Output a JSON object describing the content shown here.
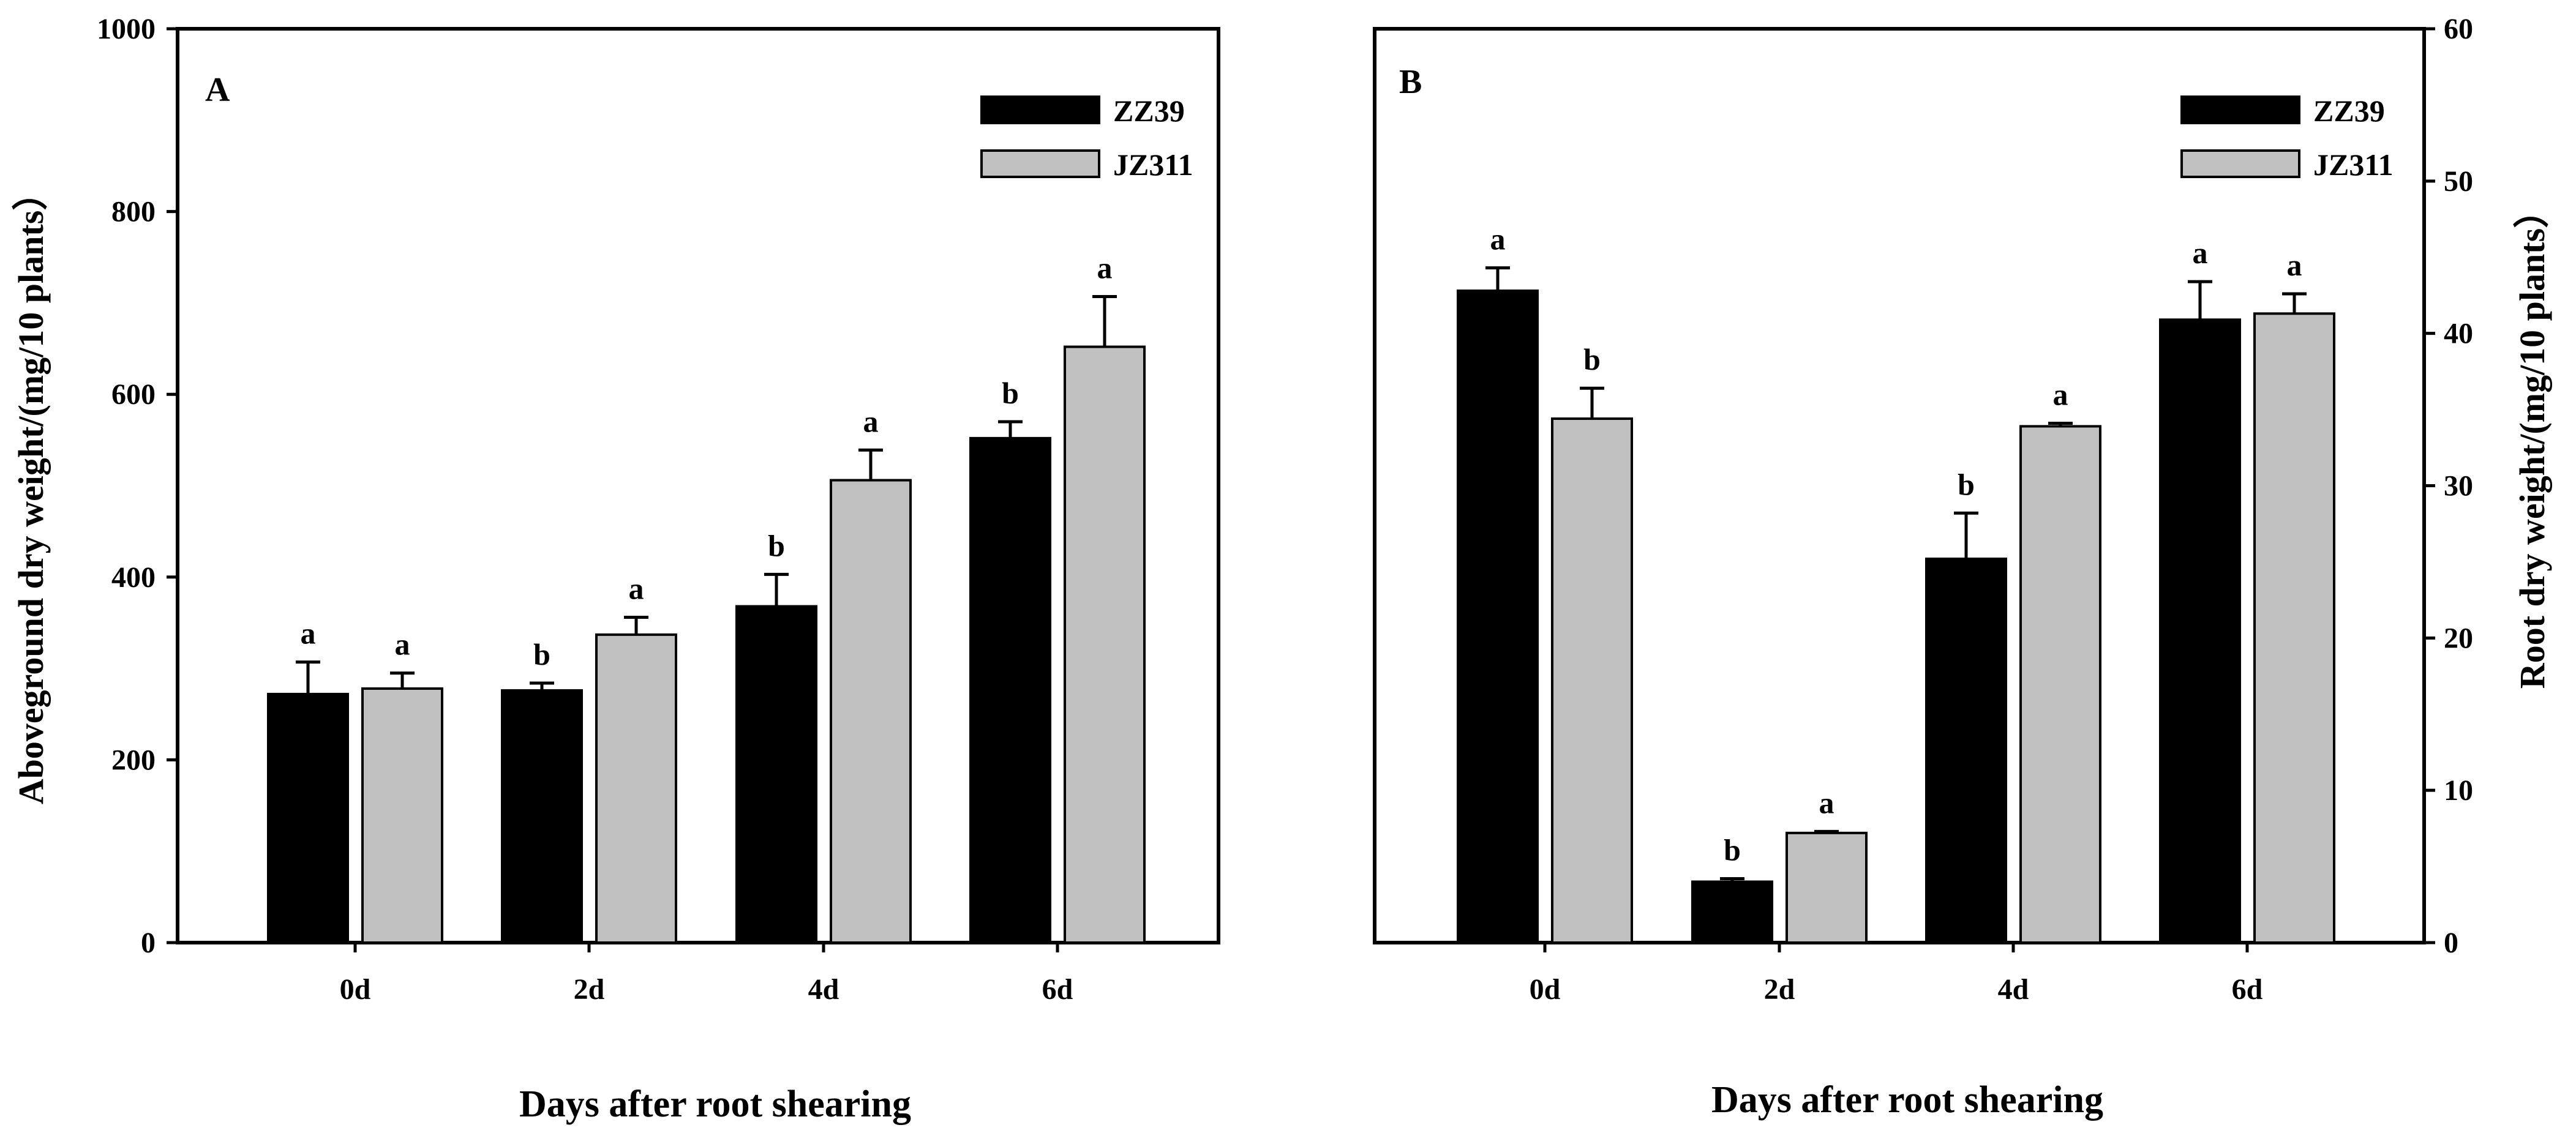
{
  "chart_data": [
    {
      "type": "bar",
      "panel": "A",
      "categories": [
        "0d",
        "2d",
        "4d",
        "6d"
      ],
      "series": [
        {
          "name": "ZZ39",
          "color": "#000000",
          "values": [
            272,
            276,
            368,
            552
          ],
          "errors": [
            35,
            8,
            35,
            18
          ],
          "letters": [
            "a",
            "b",
            "b",
            "b"
          ]
        },
        {
          "name": "JZ311",
          "color": "#c0c0c0",
          "values": [
            278,
            337,
            506,
            652
          ],
          "errors": [
            17,
            19,
            33,
            55
          ],
          "letters": [
            "a",
            "a",
            "a",
            "a"
          ]
        }
      ],
      "title": "",
      "xlabel": "Days after root shearing",
      "ylabel": "Aboveground dry weight/(mg/10 plants）",
      "ylim": [
        0,
        1000
      ],
      "yticks": [
        "0",
        "200",
        "400",
        "600",
        "800",
        "1000"
      ],
      "y_axis_side": "left",
      "legend_position": "top-right"
    },
    {
      "type": "bar",
      "panel": "B",
      "categories": [
        "0d",
        "2d",
        "4d",
        "6d"
      ],
      "series": [
        {
          "name": "ZZ39",
          "color": "#000000",
          "values": [
            42.8,
            4.0,
            25.2,
            40.9
          ],
          "errors": [
            1.5,
            0.2,
            3.0,
            2.5
          ],
          "letters": [
            "a",
            "b",
            "b",
            "a"
          ]
        },
        {
          "name": "JZ311",
          "color": "#c0c0c0",
          "values": [
            34.4,
            7.2,
            33.9,
            41.3
          ],
          "errors": [
            2.0,
            0.1,
            0.2,
            1.3
          ],
          "letters": [
            "b",
            "a",
            "a",
            "a"
          ]
        }
      ],
      "title": "",
      "xlabel": "Days after root shearing",
      "ylabel": "Root dry weight/(mg/10 plants）",
      "ylim": [
        0,
        60
      ],
      "yticks": [
        "0",
        "10",
        "20",
        "30",
        "40",
        "50",
        "60"
      ],
      "y_axis_side": "right",
      "legend_position": "top-right"
    }
  ]
}
